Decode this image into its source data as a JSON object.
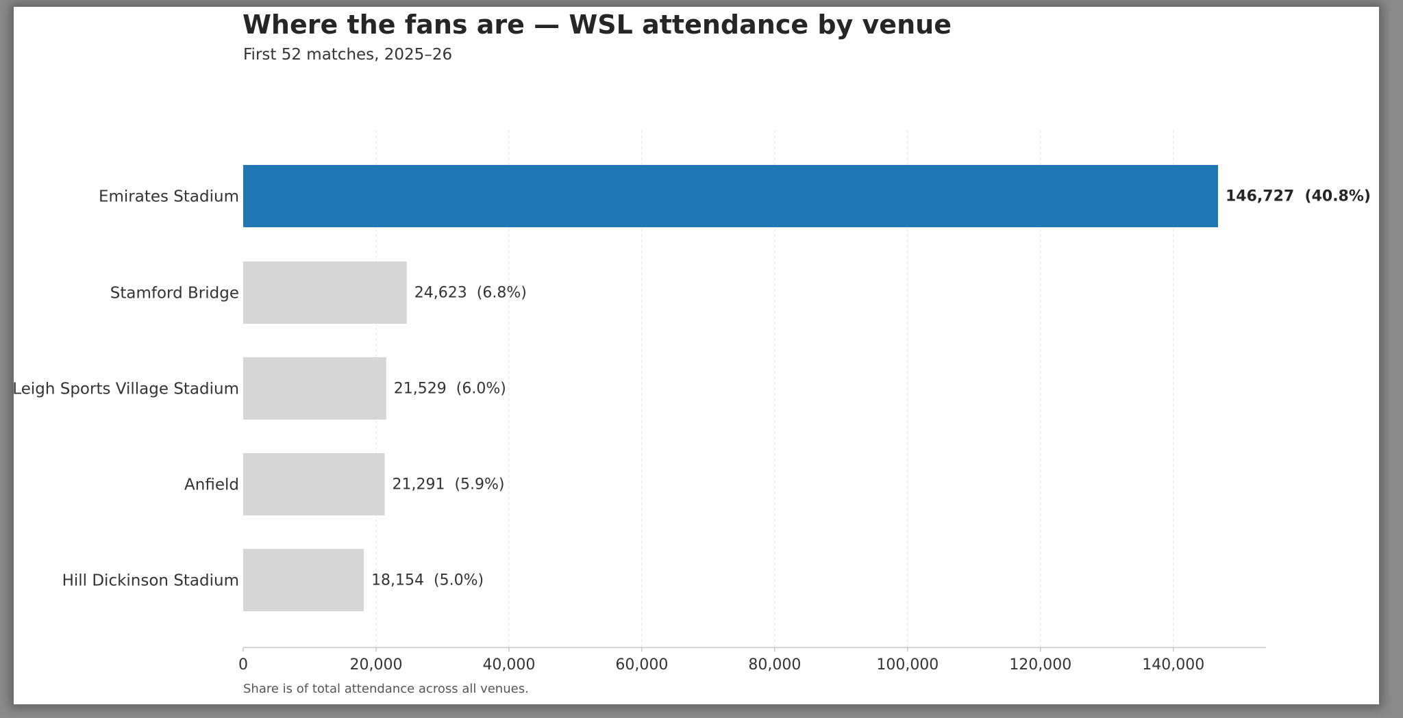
{
  "header": {
    "title": "Where the fans are — WSL attendance by venue",
    "subtitle": "First 52 matches, 2025–26"
  },
  "footnote": "Share is of total attendance across all venues.",
  "colors": {
    "highlight": "#2077b4",
    "default_bar": "#d6d6d6",
    "grid": "#e3e3e3",
    "axis": "#c8c8c8"
  },
  "chart_data": {
    "type": "bar",
    "orientation": "horizontal",
    "title": "Where the fans are — WSL attendance by venue",
    "subtitle": "First 52 matches, 2025–26",
    "xlabel": "",
    "ylabel": "",
    "xlim": [
      0,
      154000
    ],
    "grid": "vertical dashed",
    "categories": [
      "Emirates Stadium",
      "Stamford Bridge",
      "Leigh Sports Village Stadium",
      "Anfield",
      "Hill Dickinson Stadium"
    ],
    "values": [
      146727,
      24623,
      21529,
      21291,
      18154
    ],
    "labels": [
      "146,727  (40.8%)",
      "24,623  (6.8%)",
      "21,529  (6.0%)",
      "21,291  (5.9%)",
      "18,154  (5.0%)"
    ],
    "highlight_index": 0,
    "xticks": [
      0,
      20000,
      40000,
      60000,
      80000,
      100000,
      120000,
      140000
    ],
    "xtick_labels": [
      "0",
      "20,000",
      "40,000",
      "60,000",
      "80,000",
      "100,000",
      "120,000",
      "140,000"
    ]
  }
}
